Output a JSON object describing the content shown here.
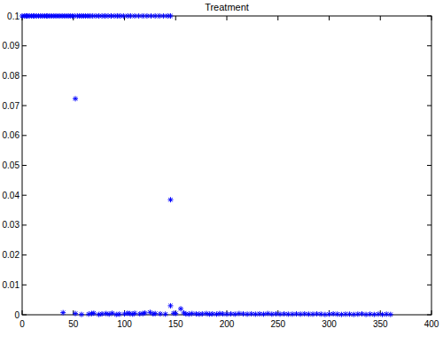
{
  "chart_data": {
    "type": "scatter",
    "title": "Treatment",
    "color": "#0000ff",
    "marker": "asterisk",
    "grid": false,
    "xlim": [
      0,
      400
    ],
    "xticks": [
      0,
      50,
      100,
      150,
      200,
      250,
      300,
      350,
      400
    ],
    "ylim": [
      0,
      0.1
    ],
    "yticks": [
      0,
      0.01,
      0.02,
      0.03,
      0.04,
      0.05,
      0.06,
      0.07,
      0.08,
      0.09,
      0.1
    ],
    "x": [
      0,
      2,
      4,
      5,
      7,
      9,
      11,
      12,
      14,
      16,
      18,
      20,
      22,
      24,
      25,
      27,
      29,
      31,
      33,
      35,
      37,
      39,
      41,
      43,
      45,
      47,
      49,
      51,
      54,
      56,
      58,
      60,
      62,
      64,
      66,
      69,
      72,
      75,
      78,
      81,
      84,
      87,
      90,
      93,
      96,
      99,
      103,
      106,
      110,
      114,
      118,
      122,
      126,
      130,
      134,
      138,
      142,
      145,
      52,
      145,
      40,
      52,
      58,
      65,
      68,
      70,
      75,
      78,
      82,
      85,
      88,
      92,
      95,
      100,
      103,
      105,
      108,
      110,
      115,
      118,
      120,
      125,
      128,
      130,
      135,
      140,
      145,
      148,
      150,
      155,
      158,
      160,
      163,
      166,
      170,
      173,
      176,
      180,
      183,
      186,
      190,
      193,
      196,
      200,
      204,
      208,
      212,
      216,
      220,
      224,
      228,
      232,
      236,
      240,
      244,
      248,
      252,
      256,
      260,
      264,
      268,
      272,
      276,
      280,
      284,
      288,
      292,
      296,
      300,
      304,
      308,
      312,
      316,
      320,
      324,
      328,
      332,
      336,
      340,
      344,
      348,
      352,
      356,
      360
    ],
    "values": [
      0.1,
      0.1,
      0.1,
      0.1,
      0.1,
      0.1,
      0.1,
      0.1,
      0.1,
      0.1,
      0.1,
      0.1,
      0.1,
      0.1,
      0.1,
      0.1,
      0.1,
      0.1,
      0.1,
      0.1,
      0.1,
      0.1,
      0.1,
      0.1,
      0.1,
      0.1,
      0.1,
      0.1,
      0.1,
      0.1,
      0.1,
      0.1,
      0.1,
      0.1,
      0.1,
      0.1,
      0.1,
      0.1,
      0.1,
      0.1,
      0.1,
      0.1,
      0.1,
      0.1,
      0.1,
      0.1,
      0.1,
      0.1,
      0.1,
      0.1,
      0.1,
      0.1,
      0.1,
      0.1,
      0.1,
      0.1,
      0.1,
      0.1,
      0.0723,
      0.0385,
      0.0007,
      0.0004,
      0.0001,
      0.0002,
      0.0004,
      0.0005,
      0.0001,
      0.0003,
      0.0004,
      0.0002,
      0.0005,
      0.0001,
      0.0002,
      0.0003,
      0.0005,
      0.0004,
      0.0002,
      0.0005,
      0.0003,
      0.0004,
      0.0006,
      0.0008,
      0.0003,
      0.0004,
      0.0003,
      0.0002,
      0.003,
      0.0005,
      0.0004,
      0.002,
      0.0006,
      0.0003,
      0.0002,
      0.0004,
      0.0003,
      0.0002,
      0.0003,
      0.0004,
      0.0002,
      0.0003,
      0.0002,
      0.0004,
      0.0003,
      0.0002,
      0.0003,
      0.0002,
      0.0004,
      0.0003,
      0.0002,
      0.0003,
      0.0002,
      0.0003,
      0.0002,
      0.0004,
      0.0002,
      0.0003,
      0.0002,
      0.0003,
      0.0002,
      0.0002,
      0.0003,
      0.0002,
      0.0003,
      0.0002,
      0.0002,
      0.0003,
      0.0002,
      0.0001,
      0.0002,
      0.0003,
      0.0002,
      0.0001,
      0.0002,
      0.0002,
      0.0001,
      0.0002,
      0.0003,
      0.0001,
      0.0002,
      0.0001,
      0.0002,
      0.0001,
      0.0002,
      0.0001
    ]
  }
}
